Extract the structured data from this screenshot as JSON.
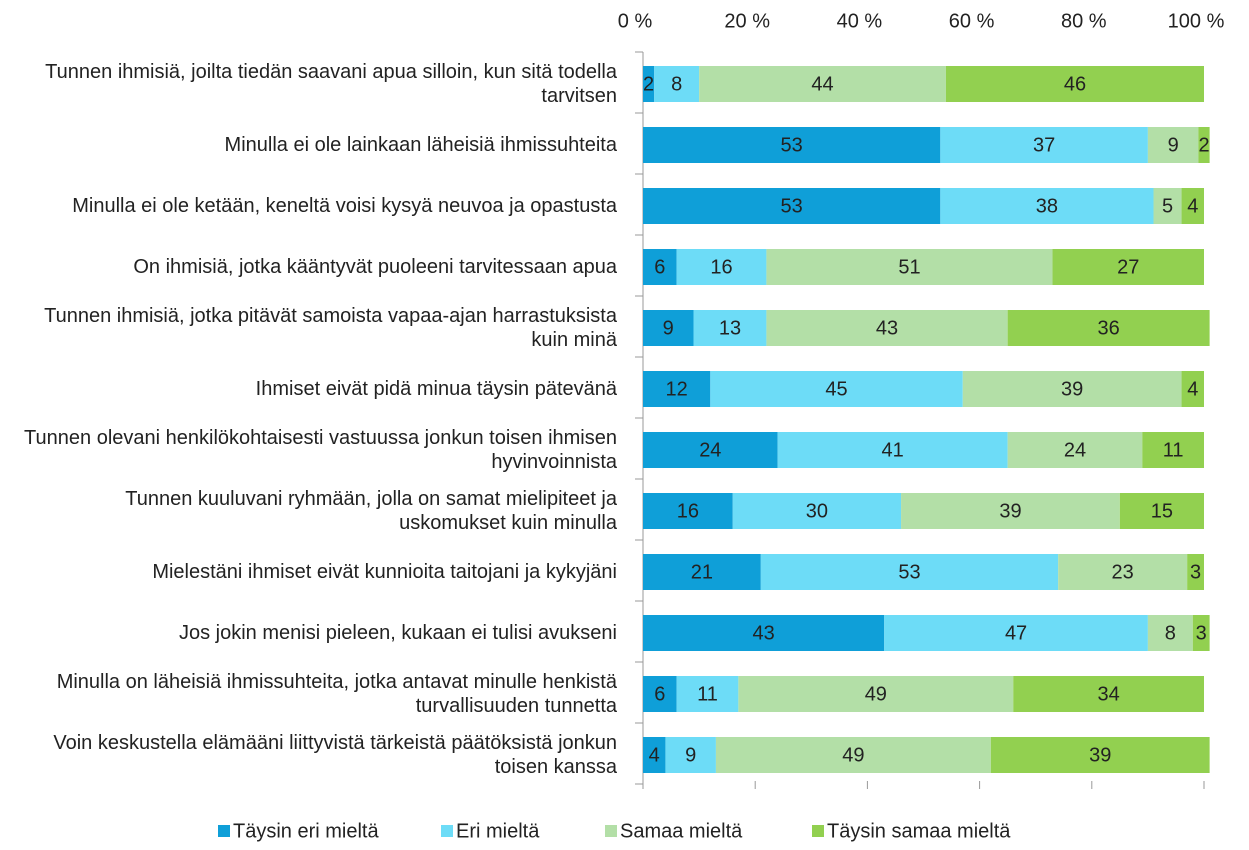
{
  "chart_data": {
    "type": "stacked-bar-horizontal",
    "categories": [
      "Tunnen ihmisiä, joilta tiedän saavani apua silloin, kun sitä todella tarvitsen",
      "Minulla ei ole lainkaan läheisiä ihmissuhteita",
      "Minulla ei ole ketään, keneltä voisi kysyä neuvoa ja opastusta",
      "On ihmisiä, jotka kääntyvät puoleeni tarvitessaan apua",
      "Tunnen ihmisiä, jotka pitävät samoista vapaa-ajan harrastuksista kuin minä",
      "Ihmiset eivät pidä minua täysin pätevänä",
      "Tunnen olevani henkilökohtaisesti vastuussa jonkun toisen ihmisen hyvinvoinnista",
      "Tunnen kuuluvani ryhmään, jolla on samat  mielipiteet ja uskomukset kuin minulla",
      "Mielestäni ihmiset eivät kunnioita taitojani ja kykyjäni",
      "Jos jokin menisi pieleen, kukaan ei tulisi avukseni",
      "Minulla on läheisiä ihmissuhteita, jotka antavat minulle henkistä turvallisuuden tunnetta",
      "Voin keskustella elämääni liittyvistä tärkeistä päätöksistä jonkun toisen kanssa"
    ],
    "series": [
      {
        "name": "Täysin eri mieltä",
        "color": "#0f9fd8",
        "values": [
          2,
          53,
          53,
          6,
          9,
          12,
          24,
          16,
          21,
          43,
          6,
          4
        ]
      },
      {
        "name": "Eri mieltä",
        "color": "#6ddcf7",
        "values": [
          8,
          37,
          38,
          16,
          13,
          45,
          41,
          30,
          53,
          47,
          11,
          9
        ]
      },
      {
        "name": "Samaa mieltä",
        "color": "#b3dfa7",
        "values": [
          44,
          9,
          5,
          51,
          43,
          39,
          24,
          39,
          23,
          8,
          49,
          49
        ]
      },
      {
        "name": "Täysin samaa mieltä",
        "color": "#92d050",
        "values": [
          46,
          2,
          4,
          27,
          36,
          4,
          11,
          15,
          3,
          3,
          34,
          39
        ]
      }
    ],
    "xlim": [
      0,
      100
    ],
    "xticks": [
      {
        "value": 0,
        "label": "0 %"
      },
      {
        "value": 20,
        "label": "20 %"
      },
      {
        "value": 40,
        "label": "40 %"
      },
      {
        "value": 60,
        "label": "60 %"
      },
      {
        "value": 80,
        "label": "80 %"
      },
      {
        "value": 100,
        "label": "100 %"
      }
    ],
    "legend": "bottom"
  }
}
